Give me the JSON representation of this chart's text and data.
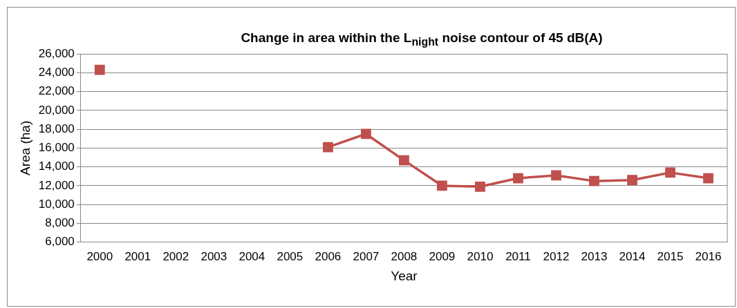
{
  "chart_data": {
    "type": "line",
    "title": "Change in area within the L$_{night}$ noise contour of 45 dB(A)",
    "xlabel": "Year",
    "ylabel": "Area (ha)",
    "categories": [
      "2000",
      "2001",
      "2002",
      "2003",
      "2004",
      "2005",
      "2006",
      "2007",
      "2008",
      "2009",
      "2010",
      "2011",
      "2012",
      "2013",
      "2014",
      "2015",
      "2016"
    ],
    "series": [
      {
        "color": "#c0504d",
        "values": [
          24300,
          null,
          null,
          null,
          null,
          null,
          16100,
          17500,
          14700,
          12000,
          11900,
          12800,
          13100,
          12500,
          12600,
          13400,
          12800
        ]
      }
    ],
    "ylim": [
      6000,
      26000
    ],
    "yticks": [
      {
        "value": 6000,
        "label": "6,000"
      },
      {
        "value": 8000,
        "label": "8,000"
      },
      {
        "value": 10000,
        "label": "10,000"
      },
      {
        "value": 12000,
        "label": "12,000"
      },
      {
        "value": 14000,
        "label": "14,000"
      },
      {
        "value": 16000,
        "label": "16,000"
      },
      {
        "value": 18000,
        "label": "18,000"
      },
      {
        "value": 20000,
        "label": "20,000"
      },
      {
        "value": 22000,
        "label": "22,000"
      },
      {
        "value": 24000,
        "label": "24,000"
      },
      {
        "value": 26000,
        "label": "26,000"
      }
    ],
    "grid": "y",
    "legend": false,
    "marker": "square",
    "line_style": "solid"
  }
}
